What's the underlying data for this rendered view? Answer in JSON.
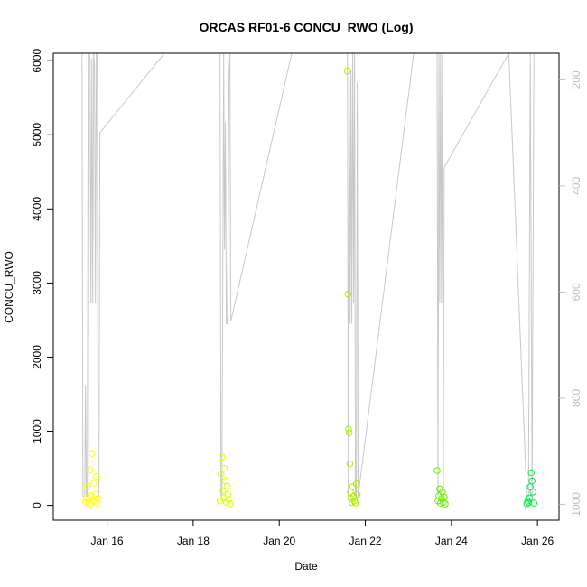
{
  "chart_data": {
    "type": "scatter",
    "title": "ORCAS RF01-6 CONCU_RWO (Log)",
    "xlabel": "Date",
    "ylabel": "CONCU_RWO",
    "x_ticks": [
      "Jan 16",
      "Jan 18",
      "Jan 20",
      "Jan 22",
      "Jan 24",
      "Jan 26"
    ],
    "y_ticks": [
      0,
      1000,
      2000,
      3000,
      4000,
      5000,
      6000
    ],
    "y_right_ticks": [
      200,
      400,
      600,
      800,
      1000
    ],
    "xlim": [
      "2016-01-14T18:00",
      "2016-01-26T12:00"
    ],
    "ylim": [
      -200,
      6100
    ],
    "y_right_lim": [
      1030,
      150
    ],
    "grid": false,
    "legend": "none",
    "colors": {
      "axis": "#000000",
      "secondary_axis": "#bdbdbd",
      "secondary_line": "#c8c8c8",
      "flights": [
        "#ffff00",
        "#ddff00",
        "#aaee00",
        "#66ee00",
        "#00ee44"
      ]
    },
    "series": [
      {
        "x": [
          "2016-01-15T12:00",
          "2016-01-15T12:30",
          "2016-01-15T13:00",
          "2016-01-15T13:30",
          "2016-01-15T14:00",
          "2016-01-15T14:30",
          "2016-01-15T15:00",
          "2016-01-15T15:30",
          "2016-01-15T16:00",
          "2016-01-15T16:30",
          "2016-01-15T17:00",
          "2016-01-15T17:30",
          "2016-01-15T18:00",
          "2016-01-15T18:30",
          "2016-01-15T19:00"
        ],
        "y": [
          40,
          100,
          250,
          60,
          20,
          480,
          130,
          700,
          80,
          300,
          50,
          150,
          390,
          30,
          90
        ],
        "color": "#ffff00"
      },
      {
        "x": [
          "2016-01-18T15:00",
          "2016-01-18T15:30",
          "2016-01-18T16:00",
          "2016-01-18T16:30",
          "2016-01-18T17:00",
          "2016-01-18T17:30",
          "2016-01-18T18:00",
          "2016-01-18T18:30",
          "2016-01-18T19:00",
          "2016-01-18T19:30",
          "2016-01-18T20:00",
          "2016-01-18T20:30"
        ],
        "y": [
          60,
          420,
          650,
          200,
          100,
          500,
          330,
          40,
          260,
          150,
          80,
          20
        ],
        "color": "#ddff00"
      },
      {
        "x": [
          "2016-01-21T14:00",
          "2016-01-21T14:20",
          "2016-01-21T14:40",
          "2016-01-21T15:00",
          "2016-01-21T15:20",
          "2016-01-21T15:40",
          "2016-01-21T16:00",
          "2016-01-21T16:30",
          "2016-01-21T17:00",
          "2016-01-21T17:30",
          "2016-01-21T18:00",
          "2016-01-21T18:30",
          "2016-01-21T19:00",
          "2016-01-21T19:30"
        ],
        "y": [
          5860,
          2850,
          1030,
          980,
          560,
          180,
          90,
          40,
          250,
          120,
          60,
          30,
          290,
          150
        ],
        "color": "#aaee00"
      },
      {
        "x": [
          "2016-01-23T16:00",
          "2016-01-23T16:30",
          "2016-01-23T17:00",
          "2016-01-23T17:30",
          "2016-01-23T18:00",
          "2016-01-23T18:30",
          "2016-01-23T19:00",
          "2016-01-23T19:30",
          "2016-01-23T20:00",
          "2016-01-23T20:30"
        ],
        "y": [
          470,
          60,
          130,
          220,
          30,
          90,
          180,
          40,
          110,
          20
        ],
        "color": "#66ee00"
      },
      {
        "x": [
          "2016-01-25T18:00",
          "2016-01-25T18:30",
          "2016-01-25T19:00",
          "2016-01-25T19:30",
          "2016-01-25T20:00",
          "2016-01-25T20:30",
          "2016-01-25T21:00",
          "2016-01-25T21:30",
          "2016-01-25T22:00"
        ],
        "y": [
          20,
          60,
          40,
          100,
          250,
          440,
          330,
          180,
          30
        ],
        "color": "#00ee44"
      }
    ],
    "secondary_line": {
      "x": [
        "2016-01-15T10:00",
        "2016-01-15T10:30",
        "2016-01-15T11:00",
        "2016-01-15T11:30",
        "2016-01-15T12:00",
        "2016-01-15T12:30",
        "2016-01-15T13:00",
        "2016-01-15T13:30",
        "2016-01-15T14:00",
        "2016-01-15T14:30",
        "2016-01-15T15:00",
        "2016-01-15T15:30",
        "2016-01-15T16:00",
        "2016-01-15T16:30",
        "2016-01-15T17:00",
        "2016-01-15T17:30",
        "2016-01-15T18:00",
        "2016-01-15T18:30",
        "2016-01-15T19:00",
        "2016-01-15T19:30",
        "2016-01-15T20:00",
        "2016-01-17T08:00",
        "2016-01-18T15:00",
        "2016-01-18T15:30",
        "2016-01-18T16:00",
        "2016-01-18T16:30",
        "2016-01-18T17:00",
        "2016-01-18T17:30",
        "2016-01-18T18:00",
        "2016-01-18T18:30",
        "2016-01-18T19:00",
        "2016-01-18T19:30",
        "2016-01-18T20:00",
        "2016-01-18T20:30",
        "2016-01-18T21:00",
        "2016-01-20T07:00",
        "2016-01-21T14:00",
        "2016-01-21T14:30",
        "2016-01-21T15:00",
        "2016-01-21T15:30",
        "2016-01-21T16:00",
        "2016-01-21T16:30",
        "2016-01-21T17:00",
        "2016-01-21T17:30",
        "2016-01-21T18:00",
        "2016-01-21T18:30",
        "2016-01-21T19:00",
        "2016-01-21T19:30",
        "2016-01-21T20:00",
        "2016-01-23T03:00",
        "2016-01-23T16:00",
        "2016-01-23T16:30",
        "2016-01-23T17:00",
        "2016-01-23T17:30",
        "2016-01-23T18:00",
        "2016-01-23T18:30",
        "2016-01-23T19:00",
        "2016-01-23T19:30",
        "2016-01-23T20:00",
        "2016-01-25T08:00",
        "2016-01-25T18:00",
        "2016-01-25T19:00",
        "2016-01-25T20:00",
        "2016-01-25T21:00",
        "2016-01-25T22:00"
      ],
      "y": [
        150,
        985,
        985,
        985,
        775,
        985,
        985,
        150,
        150,
        160,
        620,
        160,
        620,
        150,
        175,
        620,
        150,
        150,
        985,
        985,
        300,
        150,
        150,
        985,
        985,
        570,
        150,
        520,
        280,
        660,
        660,
        520,
        190,
        150,
        655,
        150,
        150,
        985,
        200,
        660,
        180,
        660,
        150,
        620,
        150,
        985,
        985,
        205,
        985,
        150,
        150,
        985,
        150,
        620,
        150,
        620,
        150,
        985,
        365,
        150,
        985,
        985,
        150,
        985,
        150
      ]
    }
  }
}
